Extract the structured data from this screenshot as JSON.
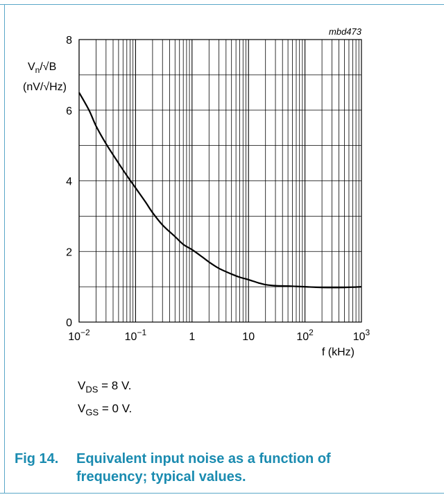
{
  "chart_data": {
    "type": "line",
    "tag": "mbd473",
    "ylabel": {
      "line1_base": "V",
      "line1_sub": "n",
      "line1_rest": "/√B",
      "line2": "(nV/√Hz)"
    },
    "xlabel": "f (kHz)",
    "x_scale": "log",
    "xlim": [
      0.01,
      1000
    ],
    "ylim": [
      0,
      8
    ],
    "grid": true,
    "x_ticks": [
      {
        "value": 0.01,
        "base": "10",
        "exp": "−2"
      },
      {
        "value": 0.1,
        "base": "10",
        "exp": "−1"
      },
      {
        "value": 1,
        "base": "1",
        "exp": ""
      },
      {
        "value": 10,
        "base": "10",
        "exp": ""
      },
      {
        "value": 100,
        "base": "10",
        "exp": "2"
      },
      {
        "value": 1000,
        "base": "10",
        "exp": "3"
      }
    ],
    "y_ticks": [
      0,
      2,
      4,
      6,
      8
    ],
    "series": [
      {
        "x": [
          0.01,
          0.015,
          0.02,
          0.03,
          0.05,
          0.07,
          0.1,
          0.15,
          0.2,
          0.3,
          0.5,
          0.7,
          1,
          1.5,
          2,
          3,
          5,
          7,
          10,
          15,
          20,
          30,
          50,
          70,
          100,
          200,
          500,
          1000
        ],
        "y": [
          6.5,
          6.0,
          5.55,
          5.05,
          4.5,
          4.15,
          3.8,
          3.4,
          3.1,
          2.75,
          2.42,
          2.2,
          2.05,
          1.85,
          1.7,
          1.52,
          1.36,
          1.27,
          1.2,
          1.11,
          1.06,
          1.03,
          1.02,
          1.01,
          1.0,
          0.98,
          0.98,
          1.0
        ]
      }
    ]
  },
  "conditions": [
    {
      "base": "V",
      "sub": "DS",
      "rest": " = 8 V."
    },
    {
      "base": "V",
      "sub": "GS",
      "rest": " = 0 V."
    }
  ],
  "caption": {
    "number": "Fig 14.",
    "text": "Equivalent input noise as a function of frequency; typical values."
  }
}
